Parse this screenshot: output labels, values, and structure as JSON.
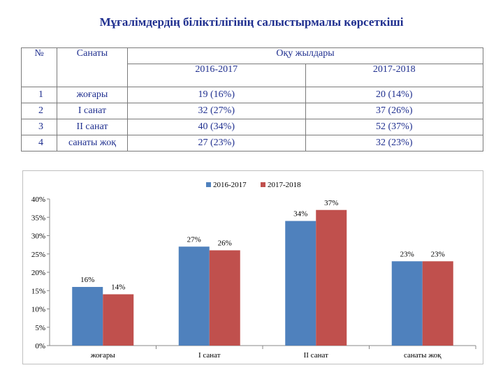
{
  "page": {
    "title": "Мұғалімдердің біліктілігінің салыстырмалы көрсеткіші"
  },
  "table": {
    "header_no": "№",
    "header_category": "Санаты",
    "header_years": "Оқу жылдары",
    "years": [
      "2016-2017",
      "2017-2018"
    ],
    "rows": [
      {
        "no": "1",
        "category": "жоғары",
        "y1": "19 (16%)",
        "y2": "20 (14%)"
      },
      {
        "no": "2",
        "category": "I санат",
        "y1": "32 (27%)",
        "y2": "37 (26%)"
      },
      {
        "no": "3",
        "category": "II санат",
        "y1": "40 (34%)",
        "y2": "52 (37%)"
      },
      {
        "no": "4",
        "category": "санаты жоқ",
        "y1": "27 (23%)",
        "y2": "32 (23%)"
      }
    ]
  },
  "chart_data": {
    "type": "bar",
    "categories": [
      "жоғары",
      "I санат",
      "II санат",
      "санаты жоқ"
    ],
    "series": [
      {
        "name": "2016-2017",
        "values": [
          16,
          27,
          34,
          23
        ],
        "color": "#4f81bd"
      },
      {
        "name": "2017-2018",
        "values": [
          14,
          26,
          37,
          23
        ],
        "color": "#c0504d"
      }
    ],
    "data_labels": [
      [
        "16%",
        "27%",
        "34%",
        "23%"
      ],
      [
        "14%",
        "26%",
        "37%",
        "23%"
      ]
    ],
    "yticks": [
      "0%",
      "5%",
      "10%",
      "15%",
      "20%",
      "25%",
      "30%",
      "35%",
      "40%"
    ],
    "ylim": [
      0,
      40
    ],
    "grid": false,
    "legend_position": "top"
  }
}
